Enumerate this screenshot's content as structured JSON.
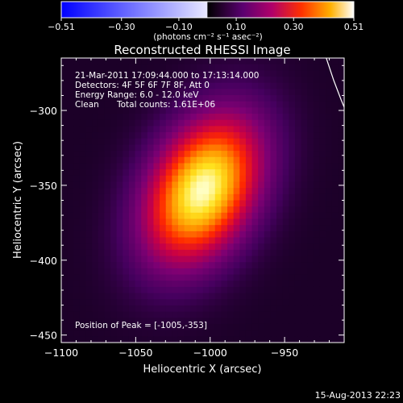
{
  "chart_data": {
    "type": "heatmap",
    "title": "Reconstructed RHESSI Image",
    "xlabel": "Heliocentric X (arcsec)",
    "ylabel": "Heliocentric Y (arcsec)",
    "xlim": [
      -1100,
      -910
    ],
    "ylim": [
      -455,
      -265
    ],
    "xticks": [
      -1100,
      -1050,
      -1000,
      -950
    ],
    "yticks": [
      -300,
      -350,
      -400,
      -450
    ],
    "xtick_labels": [
      "−1100",
      "−1050",
      "−1000",
      "−950"
    ],
    "ytick_labels": [
      "−300",
      "−350",
      "−400",
      "−450"
    ],
    "colorbar": {
      "min": -0.51,
      "max": 0.51,
      "ticks": [
        -0.51,
        -0.3,
        -0.1,
        0.1,
        0.3,
        0.51
      ],
      "tick_labels": [
        "−0.51",
        "−0.30",
        "−0.10",
        "0.10",
        "0.30",
        "0.51"
      ],
      "unit_label": "(photons cm⁻² s⁻¹ asec⁻²)",
      "colors": [
        "#0000ff",
        "#ffffff",
        "#000000",
        "#7a0090",
        "#ff2a00",
        "#ffe000",
        "#ffffff"
      ]
    },
    "source": {
      "peak_x": -1005,
      "peak_y": -353,
      "sigma_major": 37,
      "sigma_minor": 24,
      "tilt_deg": 62,
      "peak_value": 0.51
    },
    "annotations": {
      "time_range": "21-Mar-2011 17:09:44.000 to 17:13:14.000",
      "detectors": "Detectors: 4F 5F 6F 7F 8F, Att 0",
      "energy_range": "Energy Range: 6.0 - 12.0 keV",
      "clean_label": "Clean",
      "total_counts": "Total counts: 1.61E+06",
      "peak_position": "Position of Peak = [-1005,-353]"
    },
    "limb_color": "#ffffff"
  },
  "footer": {
    "timestamp": "15-Aug-2013 22:23"
  }
}
